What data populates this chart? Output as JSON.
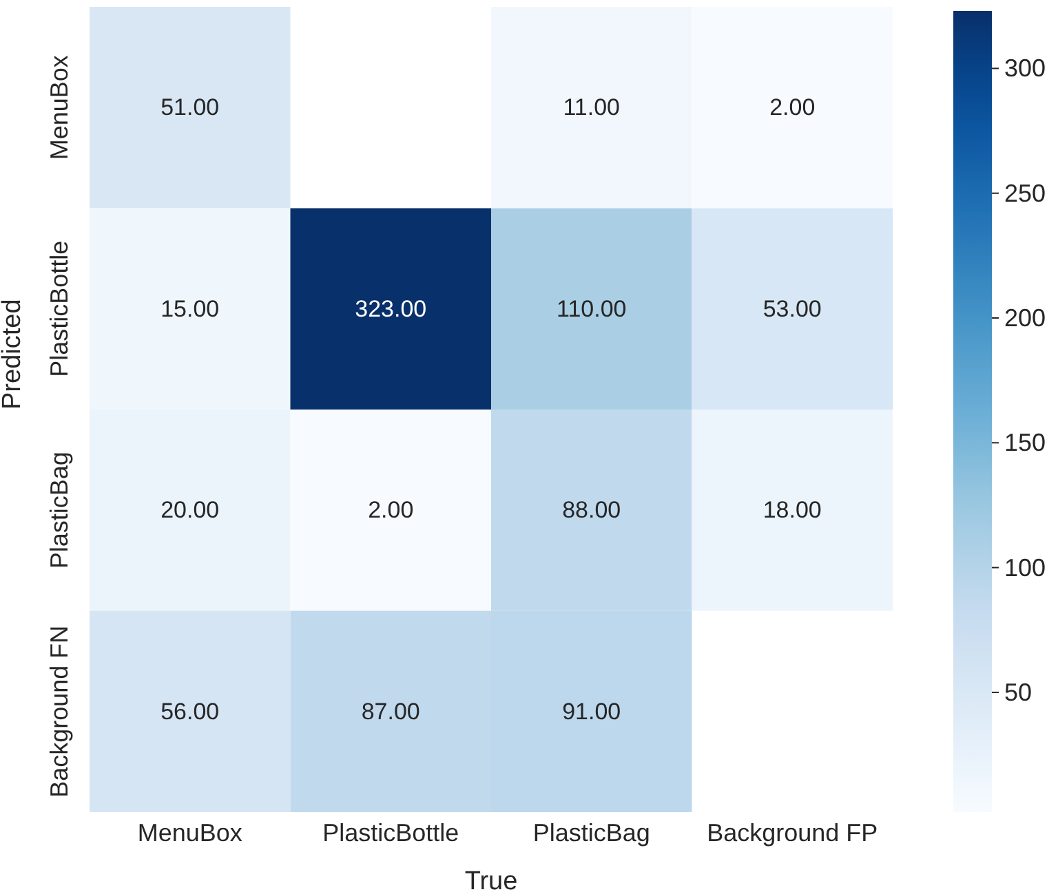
{
  "chart_data": {
    "type": "heatmap",
    "xlabel": "True",
    "ylabel": "Predicted",
    "categories": [
      "MenuBox",
      "PlasticBottle",
      "PlasticBag",
      "Background FP"
    ],
    "y_categories": [
      "MenuBox",
      "PlasticBottle",
      "PlasticBag",
      "Background FN"
    ],
    "cells": [
      [
        51,
        null,
        11,
        2
      ],
      [
        15,
        323,
        110,
        53
      ],
      [
        20,
        2,
        88,
        18
      ],
      [
        56,
        87,
        91,
        null
      ]
    ],
    "cell_labels": [
      [
        "51.00",
        null,
        "11.00",
        "2.00"
      ],
      [
        "15.00",
        "323.00",
        "110.00",
        "53.00"
      ],
      [
        "20.00",
        "2.00",
        "88.00",
        "18.00"
      ],
      [
        "56.00",
        "87.00",
        "91.00",
        null
      ]
    ],
    "clim": [
      2,
      323
    ],
    "cticks": [
      50,
      100,
      150,
      200,
      250,
      300
    ]
  }
}
